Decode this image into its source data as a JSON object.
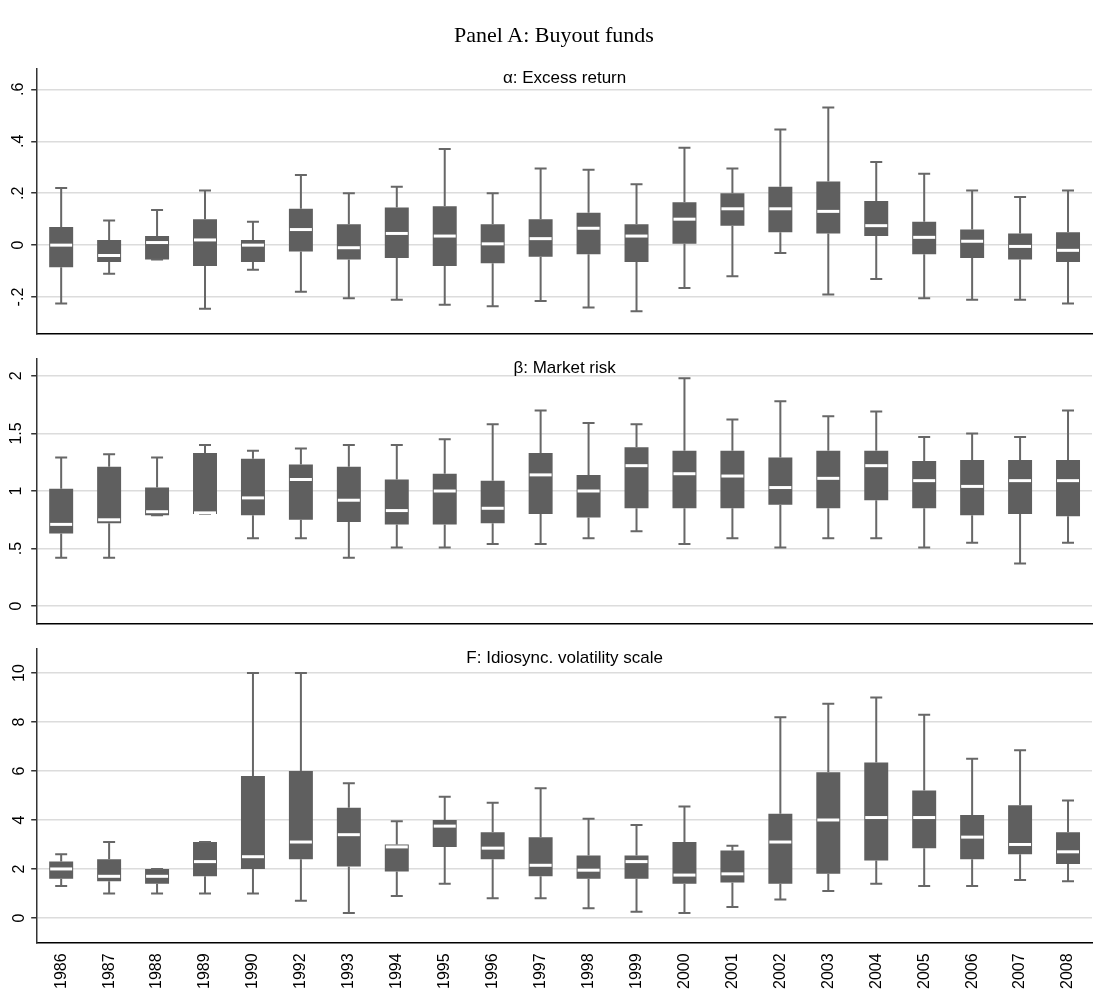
{
  "chart_data": [
    {
      "type": "box",
      "title": "Panel A: Buyout funds",
      "subtitle": "α: Excess return",
      "color": "#5f5f5f",
      "grid": "y",
      "tick_labels": "y",
      "categories": [
        "1986",
        "1987",
        "1988",
        "1989",
        "1990",
        "1992",
        "1993",
        "1994",
        "1995",
        "1996",
        "1997",
        "1998",
        "1999",
        "2000",
        "2001",
        "2002",
        "2003",
        "2004",
        "2005",
        "2006",
        "2007",
        "2008"
      ],
      "ylim": [
        -0.34,
        0.68
      ],
      "yticks": [
        {
          "value": -0.2,
          "label": "-.2"
        },
        0,
        {
          "value": 0.2,
          "label": ".2"
        },
        {
          "value": 0.4,
          "label": ".4"
        },
        {
          "value": 0.6,
          "label": ".6"
        }
      ],
      "boxes": [
        {
          "low": -0.225,
          "q1": -0.085,
          "median": 0,
          "q3": 0.07,
          "high": 0.22
        },
        {
          "low": -0.11,
          "q1": -0.065,
          "median": -0.04,
          "q3": 0.02,
          "high": 0.095
        },
        {
          "low": -0.055,
          "q1": -0.055,
          "median": 0.01,
          "q3": 0.035,
          "high": 0.135
        },
        {
          "low": -0.245,
          "q1": -0.08,
          "median": 0.02,
          "q3": 0.1,
          "high": 0.21
        },
        {
          "low": -0.095,
          "q1": -0.065,
          "median": 0,
          "q3": 0.02,
          "high": 0.09
        },
        {
          "low": -0.18,
          "q1": -0.025,
          "median": 0.06,
          "q3": 0.14,
          "high": 0.27
        },
        {
          "low": -0.205,
          "q1": -0.055,
          "median": -0.01,
          "q3": 0.08,
          "high": 0.2
        },
        {
          "low": -0.21,
          "q1": -0.05,
          "median": 0.045,
          "q3": 0.145,
          "high": 0.225
        },
        {
          "low": -0.23,
          "q1": -0.08,
          "median": 0.035,
          "q3": 0.15,
          "high": 0.37
        },
        {
          "low": -0.235,
          "q1": -0.07,
          "median": 0.005,
          "q3": 0.08,
          "high": 0.2
        },
        {
          "low": -0.215,
          "q1": -0.045,
          "median": 0.025,
          "q3": 0.1,
          "high": 0.295
        },
        {
          "low": -0.24,
          "q1": -0.035,
          "median": 0.065,
          "q3": 0.125,
          "high": 0.29
        },
        {
          "low": -0.255,
          "q1": -0.065,
          "median": 0.035,
          "q3": 0.08,
          "high": 0.235
        },
        {
          "low": -0.165,
          "q1": 0.005,
          "median": 0.1,
          "q3": 0.165,
          "high": 0.375
        },
        {
          "low": -0.12,
          "q1": 0.075,
          "median": 0.14,
          "q3": 0.2,
          "high": 0.295
        },
        {
          "low": -0.03,
          "q1": 0.05,
          "median": 0.14,
          "q3": 0.225,
          "high": 0.445
        },
        {
          "low": -0.19,
          "q1": 0.045,
          "median": 0.13,
          "q3": 0.245,
          "high": 0.53
        },
        {
          "low": -0.13,
          "q1": 0.035,
          "median": 0.075,
          "q3": 0.17,
          "high": 0.32
        },
        {
          "low": -0.205,
          "q1": -0.035,
          "median": 0.03,
          "q3": 0.09,
          "high": 0.275
        },
        {
          "low": -0.21,
          "q1": -0.05,
          "median": 0.015,
          "q3": 0.06,
          "high": 0.21
        },
        {
          "low": -0.21,
          "q1": -0.055,
          "median": -0.005,
          "q3": 0.045,
          "high": 0.185
        },
        {
          "low": -0.225,
          "q1": -0.065,
          "median": -0.02,
          "q3": 0.05,
          "high": 0.21
        }
      ]
    },
    {
      "type": "box",
      "subtitle": "β: Market risk",
      "color": "#5f5f5f",
      "grid": "y",
      "tick_labels": "y",
      "categories": [
        "1986",
        "1987",
        "1988",
        "1989",
        "1990",
        "1992",
        "1993",
        "1994",
        "1995",
        "1996",
        "1997",
        "1998",
        "1999",
        "2000",
        "2001",
        "2002",
        "2003",
        "2004",
        "2005",
        "2006",
        "2007",
        "2008"
      ],
      "ylim": [
        -0.15,
        2.15
      ],
      "yticks": [
        0,
        {
          "value": 0.5,
          "label": ".5"
        },
        1,
        1.5,
        2
      ],
      "boxes": [
        {
          "low": 0.42,
          "q1": 0.63,
          "median": 0.71,
          "q3": 1.02,
          "high": 1.29
        },
        {
          "low": 0.42,
          "q1": 0.72,
          "median": 0.75,
          "q3": 1.21,
          "high": 1.32
        },
        {
          "low": 0.79,
          "q1": 0.79,
          "median": 0.82,
          "q3": 1.03,
          "high": 1.29
        },
        {
          "low": 0.8,
          "q1": 0.8,
          "median": 0.81,
          "q3": 1.33,
          "high": 1.4
        },
        {
          "low": 0.59,
          "q1": 0.79,
          "median": 0.94,
          "q3": 1.28,
          "high": 1.35
        },
        {
          "low": 0.59,
          "q1": 0.75,
          "median": 1.1,
          "q3": 1.23,
          "high": 1.37
        },
        {
          "low": 0.42,
          "q1": 0.73,
          "median": 0.92,
          "q3": 1.21,
          "high": 1.4
        },
        {
          "low": 0.51,
          "q1": 0.71,
          "median": 0.83,
          "q3": 1.1,
          "high": 1.4
        },
        {
          "low": 0.51,
          "q1": 0.71,
          "median": 1,
          "q3": 1.15,
          "high": 1.45
        },
        {
          "low": 0.54,
          "q1": 0.72,
          "median": 0.85,
          "q3": 1.09,
          "high": 1.58
        },
        {
          "low": 0.54,
          "q1": 0.8,
          "median": 1.14,
          "q3": 1.33,
          "high": 1.7
        },
        {
          "low": 0.59,
          "q1": 0.77,
          "median": 1,
          "q3": 1.14,
          "high": 1.59
        },
        {
          "low": 0.65,
          "q1": 0.85,
          "median": 1.22,
          "q3": 1.38,
          "high": 1.58
        },
        {
          "low": 0.54,
          "q1": 0.85,
          "median": 1.15,
          "q3": 1.35,
          "high": 1.98
        },
        {
          "low": 0.59,
          "q1": 0.85,
          "median": 1.13,
          "q3": 1.35,
          "high": 1.62
        },
        {
          "low": 0.51,
          "q1": 0.88,
          "median": 1.03,
          "q3": 1.29,
          "high": 1.78
        },
        {
          "low": 0.59,
          "q1": 0.85,
          "median": 1.11,
          "q3": 1.35,
          "high": 1.65
        },
        {
          "low": 0.59,
          "q1": 0.92,
          "median": 1.22,
          "q3": 1.35,
          "high": 1.69
        },
        {
          "low": 0.51,
          "q1": 0.85,
          "median": 1.09,
          "q3": 1.26,
          "high": 1.47
        },
        {
          "low": 0.55,
          "q1": 0.79,
          "median": 1.04,
          "q3": 1.27,
          "high": 1.5
        },
        {
          "low": 0.37,
          "q1": 0.8,
          "median": 1.09,
          "q3": 1.27,
          "high": 1.47
        },
        {
          "low": 0.55,
          "q1": 0.78,
          "median": 1.09,
          "q3": 1.27,
          "high": 1.7
        }
      ]
    },
    {
      "type": "box",
      "subtitle": "F: Idiosync. volatility scale",
      "color": "#5f5f5f",
      "grid": "y",
      "categories": [
        "1986",
        "1987",
        "1988",
        "1989",
        "1990",
        "1992",
        "1993",
        "1994",
        "1995",
        "1996",
        "1997",
        "1998",
        "1999",
        "2000",
        "2001",
        "2002",
        "2003",
        "2004",
        "2005",
        "2006",
        "2007",
        "2008"
      ],
      "ylim": [
        -1,
        11
      ],
      "yticks": [
        0,
        2,
        4,
        6,
        8,
        10
      ],
      "boxes": [
        {
          "low": 1.3,
          "q1": 1.6,
          "median": 2,
          "q3": 2.3,
          "high": 2.6
        },
        {
          "low": 1,
          "q1": 1.5,
          "median": 1.7,
          "q3": 2.4,
          "high": 3.1
        },
        {
          "low": 1,
          "q1": 1.4,
          "median": 1.7,
          "q3": 2,
          "high": 2
        },
        {
          "low": 1,
          "q1": 1.7,
          "median": 2.3,
          "q3": 3.1,
          "high": 3.1
        },
        {
          "low": 1,
          "q1": 2,
          "median": 2.5,
          "q3": 5.8,
          "high": 10
        },
        {
          "low": 0.7,
          "q1": 2.4,
          "median": 3.1,
          "q3": 6,
          "high": 10
        },
        {
          "low": 0.2,
          "q1": 2.1,
          "median": 3.4,
          "q3": 4.5,
          "high": 5.5
        },
        {
          "low": 0.9,
          "q1": 1.9,
          "median": 2.9,
          "q3": 3,
          "high": 3.95
        },
        {
          "low": 1.4,
          "q1": 2.9,
          "median": 3.75,
          "q3": 4,
          "high": 4.95
        },
        {
          "low": 0.8,
          "q1": 2.4,
          "median": 2.85,
          "q3": 3.5,
          "high": 4.7
        },
        {
          "low": 0.8,
          "q1": 1.7,
          "median": 2.15,
          "q3": 3.3,
          "high": 5.3
        },
        {
          "low": 0.4,
          "q1": 1.6,
          "median": 1.95,
          "q3": 2.55,
          "high": 4.05
        },
        {
          "low": 0.25,
          "q1": 1.6,
          "median": 2.3,
          "q3": 2.55,
          "high": 3.8
        },
        {
          "low": 0.2,
          "q1": 1.4,
          "median": 1.75,
          "q3": 3.1,
          "high": 4.55
        },
        {
          "low": 0.45,
          "q1": 1.45,
          "median": 1.8,
          "q3": 2.75,
          "high": 2.95
        },
        {
          "low": 0.75,
          "q1": 1.4,
          "median": 3.1,
          "q3": 4.25,
          "high": 8.2
        },
        {
          "low": 1.1,
          "q1": 1.8,
          "median": 4,
          "q3": 5.95,
          "high": 8.75
        },
        {
          "low": 1.4,
          "q1": 2.35,
          "median": 4.1,
          "q3": 6.35,
          "high": 9
        },
        {
          "low": 1.3,
          "q1": 2.85,
          "median": 4.1,
          "q3": 5.2,
          "high": 8.3
        },
        {
          "low": 1.3,
          "q1": 2.4,
          "median": 3.3,
          "q3": 4.2,
          "high": 6.5
        },
        {
          "low": 1.55,
          "q1": 2.6,
          "median": 3,
          "q3": 4.6,
          "high": 6.85
        },
        {
          "low": 1.5,
          "q1": 2.2,
          "median": 2.7,
          "q3": 3.5,
          "high": 4.8
        }
      ]
    }
  ]
}
